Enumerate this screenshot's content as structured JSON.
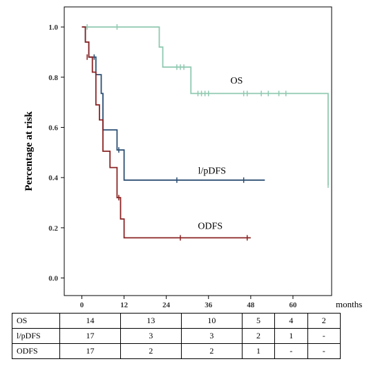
{
  "chart_data": {
    "type": "line",
    "step": true,
    "ylabel": "Percentage at risk",
    "xlabel": "",
    "x_unit_label": "months",
    "xlim": [
      -5,
      71
    ],
    "ylim": [
      -0.07,
      1.08
    ],
    "xticks": [
      0,
      12,
      24,
      36,
      48,
      60
    ],
    "yticks": [
      0.0,
      0.2,
      0.4,
      0.6,
      0.8,
      1.0
    ],
    "ytick_labels": [
      "0.0",
      "0.2",
      "0.4",
      "0.6",
      "0.8",
      "1.0"
    ],
    "series": [
      {
        "name": "OS",
        "color": "#8fc9b0",
        "steps": [
          [
            0,
            1.0
          ],
          [
            22,
            0.92
          ],
          [
            23,
            0.84
          ],
          [
            31,
            0.735
          ],
          [
            70,
            0.37
          ]
        ],
        "end_x": 70,
        "censored": [
          [
            1.5,
            1.0
          ],
          [
            10,
            1.0
          ],
          [
            27,
            0.84
          ],
          [
            28,
            0.84
          ],
          [
            29,
            0.84
          ],
          [
            33,
            0.735
          ],
          [
            34,
            0.735
          ],
          [
            35,
            0.735
          ],
          [
            36,
            0.735
          ],
          [
            46,
            0.735
          ],
          [
            47,
            0.735
          ],
          [
            51,
            0.735
          ],
          [
            53,
            0.735
          ],
          [
            56,
            0.735
          ],
          [
            58,
            0.735
          ],
          [
            70,
            0.37
          ]
        ]
      },
      {
        "name": "l/pDFS",
        "color": "#2b4f73",
        "steps": [
          [
            0,
            1.0
          ],
          [
            1,
            0.94
          ],
          [
            2,
            0.88
          ],
          [
            4,
            0.81
          ],
          [
            5.5,
            0.735
          ],
          [
            6,
            0.59
          ],
          [
            10,
            0.51
          ],
          [
            12,
            0.39
          ]
        ],
        "end_x": 52,
        "censored": [
          [
            3.5,
            0.88
          ],
          [
            10.5,
            0.51
          ],
          [
            27,
            0.39
          ],
          [
            46,
            0.39
          ]
        ]
      },
      {
        "name": "ODFS",
        "color": "#8b2323",
        "steps": [
          [
            0,
            1.0
          ],
          [
            1,
            0.94
          ],
          [
            2,
            0.88
          ],
          [
            3,
            0.82
          ],
          [
            4,
            0.69
          ],
          [
            5,
            0.63
          ],
          [
            6,
            0.505
          ],
          [
            8,
            0.44
          ],
          [
            10,
            0.32
          ],
          [
            11,
            0.235
          ],
          [
            12,
            0.16
          ]
        ],
        "end_x": 48,
        "censored": [
          [
            1.5,
            0.88
          ],
          [
            10.5,
            0.32
          ],
          [
            28,
            0.16
          ],
          [
            47,
            0.16
          ]
        ]
      }
    ],
    "annotations": [
      {
        "text": "OS",
        "series": "OS"
      },
      {
        "text": "l/pDFS",
        "series": "l/pDFS"
      },
      {
        "text": "ODFS",
        "series": "ODFS"
      }
    ]
  },
  "risk_table": {
    "rows": [
      {
        "name": "OS",
        "values": [
          "14",
          "13",
          "10",
          "5",
          "4",
          "2"
        ]
      },
      {
        "name": "l/pDFS",
        "values": [
          "17",
          "3",
          "3",
          "2",
          "1",
          "-"
        ]
      },
      {
        "name": "ODFS",
        "values": [
          "17",
          "2",
          "2",
          "1",
          "-",
          "-"
        ]
      }
    ]
  }
}
